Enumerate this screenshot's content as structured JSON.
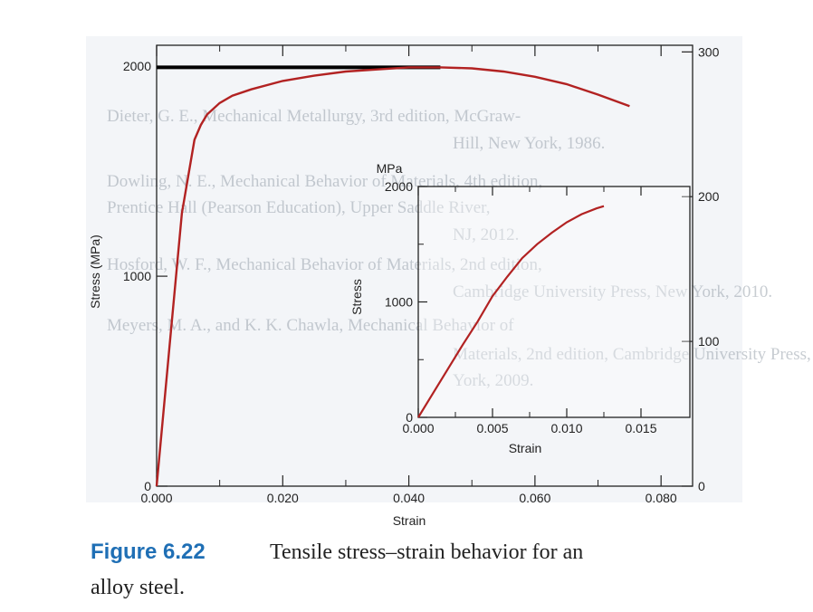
{
  "figure": {
    "caption_label": "Figure 6.22",
    "caption_text_line1": "Tensile stress–strain behavior for an",
    "caption_text_line2": "alloy steel."
  },
  "bleed_through": [
    "Dieter, G. E., Mechanical Metallurgy, 3rd edition, McGraw-",
    "Hill, New York, 1986.",
    "Dowling, N. E., Mechanical Behavior of Materials, 4th edition,",
    "Prentice Hall (Pearson Education), Upper Saddle River,",
    "NJ, 2012.",
    "Hosford, W. F., Mechanical Behavior of Materials, 2nd edition,",
    "Cambridge University Press, New York, 2010.",
    "Meyers, M. A., and K. K. Chawla, Mechanical Behavior of",
    "Materials, 2nd edition, Cambridge University Press, New",
    "York, 2009."
  ],
  "colors": {
    "curve": "#b22222",
    "axis": "#222222",
    "highlight_line": "#000000",
    "caption_label": "#1f6fb5"
  },
  "chart_data": [
    {
      "type": "line",
      "xlabel": "Strain",
      "ylabel": "Stress (MPa)",
      "y2label": "",
      "xlim": [
        0,
        0.085
      ],
      "ylim": [
        0,
        2100
      ],
      "y2lim": [
        0,
        304.6
      ],
      "x_ticks": [
        "0.000",
        "0.020",
        "0.040",
        "0.060",
        "0.080"
      ],
      "x_tick_values": [
        0,
        0.02,
        0.04,
        0.06,
        0.08
      ],
      "y_ticks": [
        "0",
        "1000",
        "2000"
      ],
      "y_tick_values": [
        0,
        1000,
        2000
      ],
      "y2_ticks": [
        "0",
        "100",
        "200",
        "300"
      ],
      "y2_tick_values": [
        0,
        100,
        200,
        300
      ],
      "grid": false,
      "series": [
        {
          "x": [
            0,
            0.002,
            0.004,
            0.006,
            0.007,
            0.008,
            0.01,
            0.012,
            0.015,
            0.02,
            0.025,
            0.03,
            0.035,
            0.04,
            0.045,
            0.05,
            0.055,
            0.06,
            0.065,
            0.07,
            0.075
          ],
          "y": [
            0,
            650,
            1300,
            1650,
            1720,
            1770,
            1825,
            1860,
            1890,
            1930,
            1955,
            1975,
            1985,
            1995,
            1995,
            1990,
            1975,
            1950,
            1915,
            1865,
            1810
          ]
        }
      ],
      "annotation_line": {
        "x": [
          0,
          0.045
        ],
        "y": [
          1995,
          1995
        ]
      }
    },
    {
      "type": "line",
      "xlabel": "Strain",
      "ylabel": "Stress",
      "unit_label": "MPa",
      "xlim": [
        0,
        0.015
      ],
      "ylim": [
        0,
        2000
      ],
      "x_ticks": [
        "0.000",
        "0.005",
        "0.010",
        "0.015"
      ],
      "x_tick_values": [
        0,
        0.005,
        0.01,
        0.015
      ],
      "y_ticks": [
        "0",
        "1000",
        "2000"
      ],
      "y_tick_values": [
        0,
        1000,
        2000
      ],
      "grid": false,
      "series": [
        {
          "x": [
            0,
            0.001,
            0.002,
            0.003,
            0.004,
            0.005,
            0.006,
            0.007,
            0.008,
            0.009,
            0.01,
            0.011,
            0.012,
            0.0125
          ],
          "y": [
            0,
            210,
            420,
            630,
            830,
            1050,
            1220,
            1380,
            1500,
            1600,
            1690,
            1760,
            1810,
            1830
          ]
        }
      ]
    }
  ]
}
